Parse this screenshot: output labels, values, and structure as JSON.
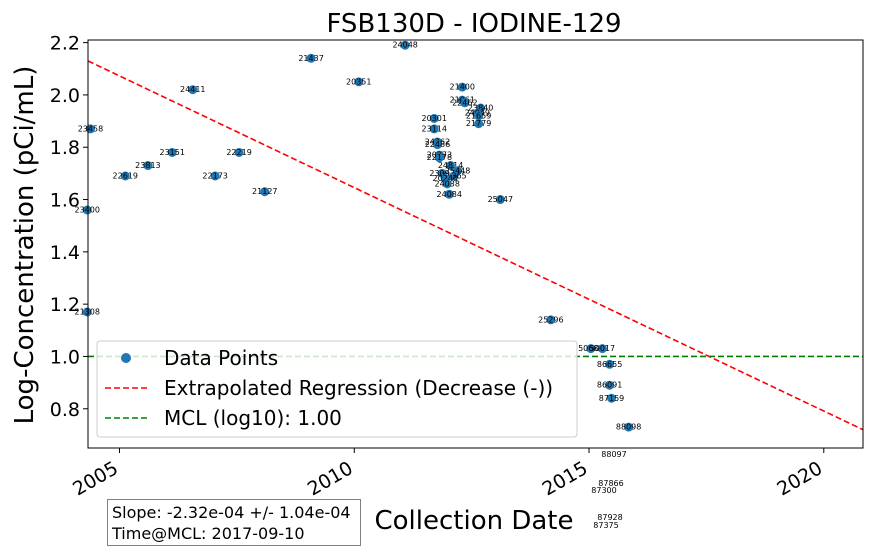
{
  "chart_data": {
    "type": "scatter",
    "title": "FSB130D - IODINE-129",
    "xlabel": "Collection Date",
    "ylabel": "Log-Concentration (pCi/mL)",
    "xlim": [
      "2004-05-01",
      "2020-11-01"
    ],
    "ylim": [
      0.65,
      2.21
    ],
    "x_ticks": [
      "2005",
      "2010",
      "2015",
      "2020"
    ],
    "y_ticks": [
      0.8,
      1.0,
      1.2,
      1.4,
      1.6,
      1.8,
      2.0,
      2.2
    ],
    "grid": false,
    "legend": {
      "placement": "lower-left",
      "entries": [
        "Data Points",
        "Extrapolated Regression (Decrease (-))",
        "MCL (log10): 1.00"
      ]
    },
    "colors": {
      "points": "#1f77b4",
      "regression": "#ff0000",
      "mcl": "#008000"
    },
    "series": [
      {
        "name": "Data Points",
        "points": [
          {
            "x": "2004-05-20",
            "y": 1.87,
            "label": "23458"
          },
          {
            "x": "2004-04-25",
            "y": 1.56,
            "label": "23400"
          },
          {
            "x": "2004-04-25",
            "y": 1.17,
            "label": "21308"
          },
          {
            "x": "2005-02-15",
            "y": 1.69,
            "label": "22619"
          },
          {
            "x": "2005-08-10",
            "y": 1.73,
            "label": "23813"
          },
          {
            "x": "2006-02-15",
            "y": 1.78,
            "label": "23151"
          },
          {
            "x": "2006-07-25",
            "y": 2.02,
            "label": "24411"
          },
          {
            "x": "2007-01-15",
            "y": 1.69,
            "label": "22173"
          },
          {
            "x": "2007-07-20",
            "y": 1.78,
            "label": "22219"
          },
          {
            "x": "2008-02-05",
            "y": 1.63,
            "label": "21127"
          },
          {
            "x": "2009-01-30",
            "y": 2.14,
            "label": "21437"
          },
          {
            "x": "2010-02-05",
            "y": 2.05,
            "label": "20351"
          },
          {
            "x": "2011-02-01",
            "y": 2.19,
            "label": "24048"
          },
          {
            "x": "2011-09-15",
            "y": 1.91,
            "label": "20301"
          },
          {
            "x": "2011-09-15",
            "y": 1.87,
            "label": "23114"
          },
          {
            "x": "2011-10-10",
            "y": 1.82,
            "label": "24262"
          },
          {
            "x": "2011-10-10",
            "y": 1.81,
            "label": "22486"
          },
          {
            "x": "2011-10-25",
            "y": 1.77,
            "label": "20273"
          },
          {
            "x": "2011-10-25",
            "y": 1.76,
            "label": "22178"
          },
          {
            "x": "2012-01-20",
            "y": 1.73,
            "label": "24814"
          },
          {
            "x": "2012-03-15",
            "y": 1.71,
            "label": "25448"
          },
          {
            "x": "2011-11-15",
            "y": 1.7,
            "label": "23092"
          },
          {
            "x": "2012-02-15",
            "y": 1.69,
            "label": "21365"
          },
          {
            "x": "2011-12-10",
            "y": 1.68,
            "label": "20240"
          },
          {
            "x": "2011-12-25",
            "y": 1.66,
            "label": "24038"
          },
          {
            "x": "2012-01-10",
            "y": 1.62,
            "label": "24084"
          },
          {
            "x": "2012-04-20",
            "y": 2.03,
            "label": "21400"
          },
          {
            "x": "2012-04-20",
            "y": 1.98,
            "label": "21061"
          },
          {
            "x": "2012-05-10",
            "y": 1.97,
            "label": "22462"
          },
          {
            "x": "2012-09-10",
            "y": 1.95,
            "label": "23840"
          },
          {
            "x": "2012-08-15",
            "y": 1.93,
            "label": "24049"
          },
          {
            "x": "2012-08-25",
            "y": 1.92,
            "label": "21659"
          },
          {
            "x": "2012-08-25",
            "y": 1.89,
            "label": "21779"
          },
          {
            "x": "2013-02-10",
            "y": 1.6,
            "label": "25047"
          },
          {
            "x": "2014-03-10",
            "y": 1.14,
            "label": "25296"
          },
          {
            "x": "2015-01-15",
            "y": 1.03,
            "label": "50680"
          },
          {
            "x": "2015-04-15",
            "y": 1.03,
            "label": "50017"
          },
          {
            "x": "2015-06-10",
            "y": 0.97,
            "label": "86655"
          },
          {
            "x": "2015-06-10",
            "y": 0.89,
            "label": "86091"
          },
          {
            "x": "2015-06-25",
            "y": 0.84,
            "label": "87159"
          },
          {
            "x": "2015-11-05",
            "y": 0.73,
            "label": "88098"
          }
        ]
      }
    ],
    "offscale_labels": [
      "88097",
      "87866",
      "87300",
      "87928",
      "87375"
    ],
    "regression_line": {
      "name": "Extrapolated Regression (Decrease (-))",
      "style": "dashed",
      "x": [
        "2004-05-01",
        "2020-11-01"
      ],
      "y": [
        2.13,
        0.72
      ]
    },
    "mcl_line": {
      "name": "MCL (log10): 1.00",
      "style": "dashed",
      "y": 1.0
    }
  },
  "stats": {
    "slope": "Slope: -2.32e-04 +/- 1.04e-04",
    "time_at_mcl": "Time@MCL: 2017-09-10"
  }
}
